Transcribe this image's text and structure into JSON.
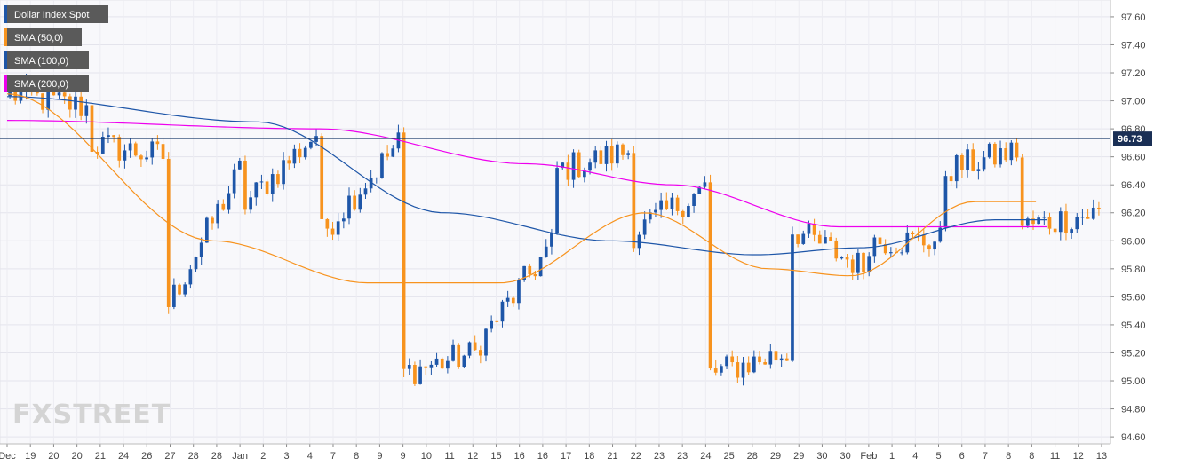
{
  "chart_data": {
    "type": "candlestick",
    "title": "",
    "xlabel": "",
    "ylabel": "",
    "ylim": [
      94.55,
      97.72
    ],
    "grid": true,
    "legend_position": "top-left",
    "y_ticks": [
      "97.60",
      "97.40",
      "97.20",
      "97.00",
      "96.80",
      "96.60",
      "96.40",
      "96.20",
      "96.00",
      "95.80",
      "95.60",
      "95.40",
      "95.20",
      "95.00",
      "94.80",
      "94.60"
    ],
    "x_ticks": [
      "Dec",
      "19",
      "20",
      "20",
      "21",
      "24",
      "26",
      "27",
      "28",
      "28",
      "Jan",
      "2",
      "3",
      "4",
      "7",
      "8",
      "9",
      "9",
      "10",
      "11",
      "12",
      "15",
      "16",
      "16",
      "17",
      "18",
      "21",
      "22",
      "23",
      "23",
      "24",
      "25",
      "28",
      "29",
      "29",
      "30",
      "30",
      "Feb",
      "1",
      "4",
      "5",
      "6",
      "7",
      "8",
      "8",
      "11",
      "12",
      "13"
    ],
    "last_price": 96.73,
    "last_price_label": "96.73",
    "series": [
      {
        "name": "Dollar Index Spot",
        "color": "#1e56a8",
        "up_color": "#1e56a8",
        "down_color": "#f7931e"
      },
      {
        "name": "SMA (50,0)",
        "color": "#f7931e"
      },
      {
        "name": "SMA (100,0)",
        "color": "#1e56a8"
      },
      {
        "name": "SMA (200,0)",
        "color": "#ee00ee"
      }
    ],
    "candle_keys": [
      [
        97.05,
        97.05
      ],
      [
        96.95,
        96.7
      ],
      [
        96.6,
        95.5
      ],
      [
        96.55,
        96.25
      ],
      [
        96.8,
        96.05
      ],
      [
        96.7,
        95.05
      ],
      [
        95.2,
        95.25
      ],
      [
        96.0,
        96.5
      ],
      [
        96.65,
        96.05
      ],
      [
        96.4,
        95.05
      ],
      [
        95.2,
        96.1
      ],
      [
        95.8,
        96.0
      ],
      [
        96.0,
        96.5
      ],
      [
        96.65,
        96.1
      ],
      [
        96.2,
        95.95
      ]
    ],
    "sma50_keys": [
      [
        0,
        97.05
      ],
      [
        0.2,
        96.0
      ],
      [
        0.35,
        95.7
      ],
      [
        0.48,
        95.7
      ],
      [
        0.62,
        96.2
      ],
      [
        0.74,
        95.8
      ],
      [
        0.82,
        95.75
      ],
      [
        0.94,
        96.28
      ]
    ],
    "sma100_keys": [
      [
        0,
        97.03
      ],
      [
        0.24,
        96.85
      ],
      [
        0.42,
        96.2
      ],
      [
        0.58,
        96.0
      ],
      [
        0.72,
        95.9
      ],
      [
        0.82,
        95.95
      ],
      [
        0.95,
        96.15
      ]
    ],
    "sma200_keys": [
      [
        0,
        96.86
      ],
      [
        0.3,
        96.8
      ],
      [
        0.5,
        96.55
      ],
      [
        0.64,
        96.4
      ],
      [
        0.8,
        96.1
      ],
      [
        0.95,
        96.1
      ]
    ],
    "logo": "FXSTREET"
  }
}
